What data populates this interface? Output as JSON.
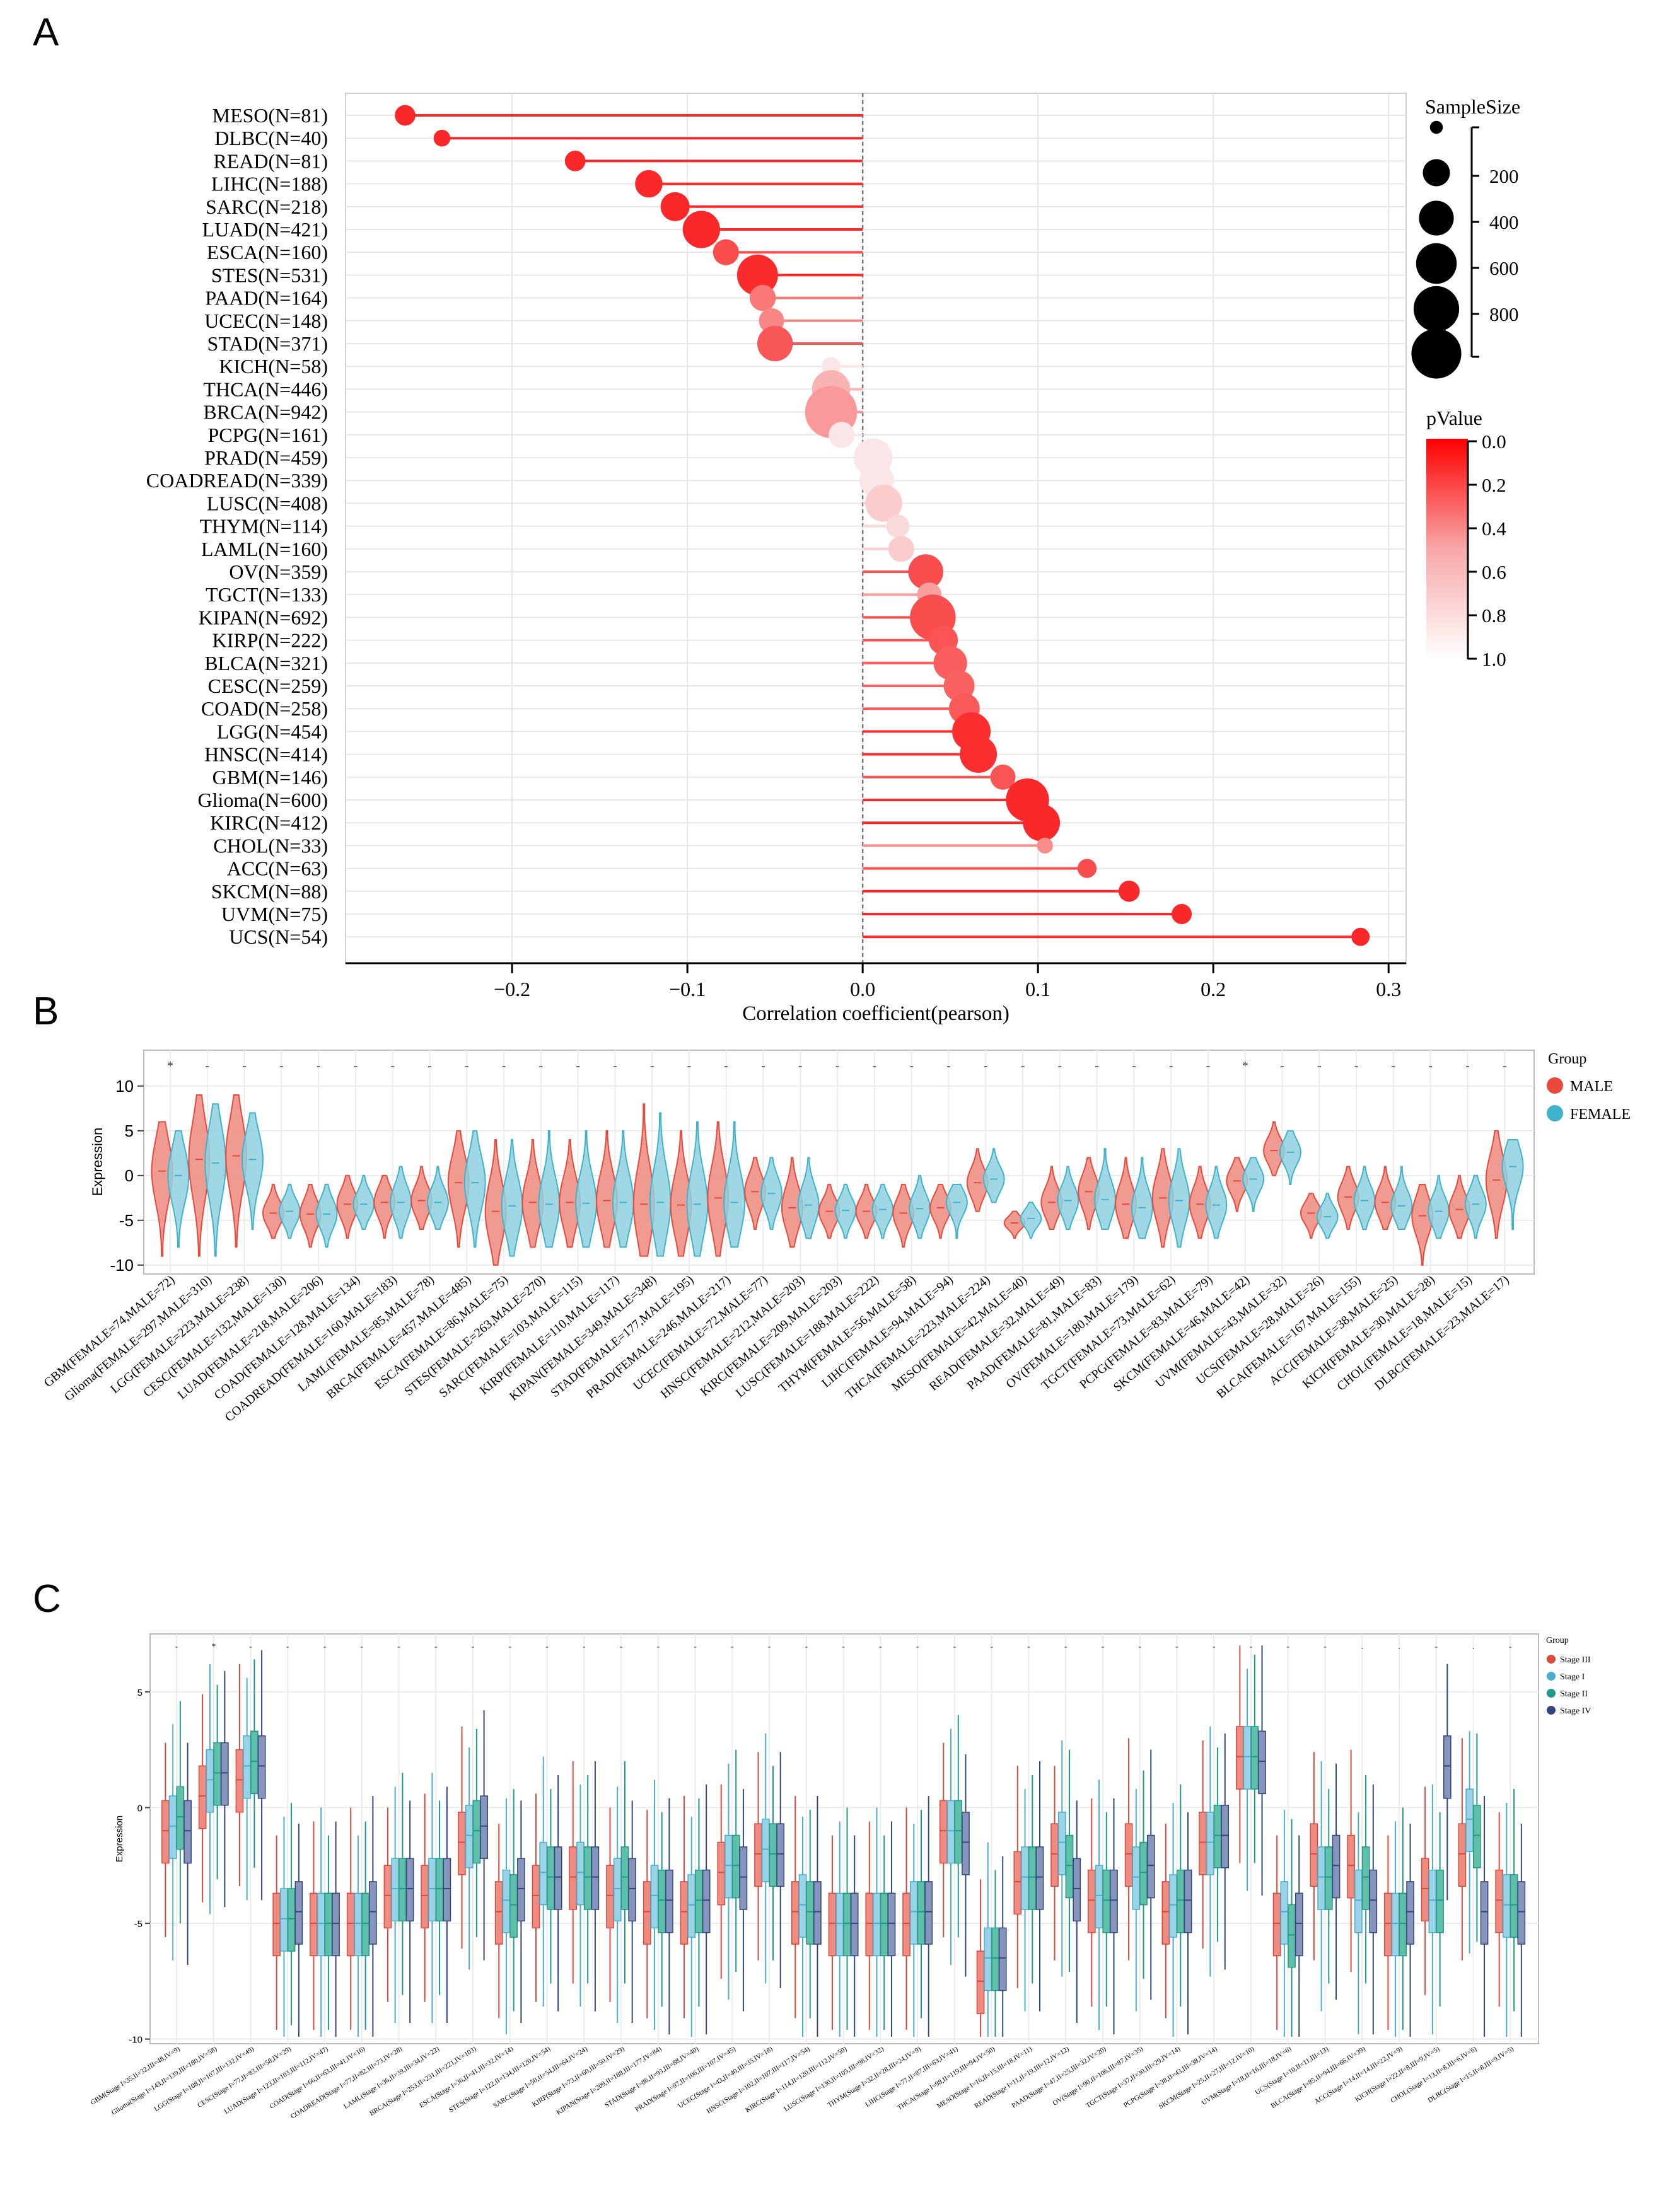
{
  "panels": {
    "a": "A",
    "b": "B",
    "c": "C"
  },
  "chart_data": [
    {
      "type": "scatter",
      "subtype": "lollipop",
      "panel": "A",
      "xlabel": "Correlation coefficient(pearson)",
      "xlim": [
        -0.295,
        0.31
      ],
      "xticks": [
        -0.2,
        -0.1,
        0.0,
        0.1,
        0.2,
        0.3
      ],
      "xtick_labels": [
        "−0.2",
        "−0.1",
        "0.0",
        "0.1",
        "0.2",
        "0.3"
      ],
      "categories": [
        "MESO(N=81)",
        "DLBC(N=40)",
        "READ(N=81)",
        "LIHC(N=188)",
        "SARC(N=218)",
        "LUAD(N=421)",
        "ESCA(N=160)",
        "STES(N=531)",
        "PAAD(N=164)",
        "UCEC(N=148)",
        "STAD(N=371)",
        "KICH(N=58)",
        "THCA(N=446)",
        "BRCA(N=942)",
        "PCPG(N=161)",
        "PRAD(N=459)",
        "COADREAD(N=339)",
        "LUSC(N=408)",
        "THYM(N=114)",
        "LAML(N=160)",
        "OV(N=359)",
        "TGCT(N=133)",
        "KIPAN(N=692)",
        "KIRP(N=222)",
        "BLCA(N=321)",
        "CESC(N=259)",
        "COAD(N=258)",
        "LGG(N=454)",
        "HNSC(N=414)",
        "GBM(N=146)",
        "Glioma(N=600)",
        "KIRC(N=412)",
        "CHOL(N=33)",
        "ACC(N=63)",
        "SKCM(N=88)",
        "UVM(N=75)",
        "UCS(N=54)"
      ],
      "values": [
        -0.261,
        -0.24,
        -0.164,
        -0.122,
        -0.107,
        -0.092,
        -0.078,
        -0.06,
        -0.057,
        -0.052,
        -0.05,
        -0.018,
        -0.018,
        -0.018,
        -0.012,
        0.006,
        0.008,
        0.012,
        0.02,
        0.022,
        0.036,
        0.038,
        0.04,
        0.046,
        0.05,
        0.055,
        0.058,
        0.062,
        0.066,
        0.08,
        0.094,
        0.102,
        0.104,
        0.128,
        0.152,
        0.182,
        0.284
      ],
      "sample_size": [
        81,
        40,
        81,
        188,
        218,
        421,
        160,
        531,
        164,
        148,
        371,
        58,
        446,
        942,
        161,
        459,
        339,
        408,
        114,
        160,
        359,
        133,
        692,
        222,
        321,
        259,
        258,
        454,
        414,
        146,
        600,
        412,
        33,
        63,
        88,
        75,
        54
      ],
      "pvalue": [
        0.02,
        0.15,
        0.14,
        0.09,
        0.1,
        0.06,
        0.3,
        0.17,
        0.47,
        0.53,
        0.34,
        0.9,
        0.7,
        0.6,
        0.9,
        0.9,
        0.9,
        0.8,
        0.85,
        0.8,
        0.3,
        0.62,
        0.3,
        0.33,
        0.37,
        0.38,
        0.35,
        0.18,
        0.18,
        0.33,
        0.02,
        0.04,
        0.55,
        0.3,
        0.16,
        0.12,
        0.04
      ],
      "legend_size": {
        "title": "SampleSize",
        "values": [
          200,
          400,
          600,
          800
        ],
        "labels": [
          "200",
          "400",
          "600",
          "800"
        ]
      },
      "legend_color": {
        "title": "pValue",
        "values": [
          0.0,
          0.2,
          0.4,
          0.6,
          0.8,
          1.0
        ],
        "labels": [
          "0.0",
          "0.2",
          "0.4",
          "0.6",
          "0.8",
          "1.0"
        ],
        "low_color": "#ff0000",
        "high_color": "#ffffff"
      }
    },
    {
      "type": "violin",
      "panel": "B",
      "ylabel": "Expression",
      "ylim": [
        -11,
        14
      ],
      "yticks": [
        10,
        5,
        0,
        -5,
        -10
      ],
      "ytick_labels": [
        "10",
        "5",
        "0",
        "-5",
        "-10"
      ],
      "legend_title": "Group",
      "series": [
        {
          "name": "MALE",
          "color": "#e8493a",
          "fill": "#ec8a7f"
        },
        {
          "name": "FEMALE",
          "color": "#3fb3cc",
          "fill": "#8fd0df"
        }
      ],
      "categories": [
        "GBM(FEMALE=74,MALE=72)",
        "Glioma(FEMALE=297,MALE=310)",
        "LGG(FEMALE=223,MALE=238)",
        "CESC(FEMALE=132,MALE=130)",
        "LUAD(FEMALE=218,MALE=206)",
        "COAD(FEMALE=128,MALE=134)",
        "COADREAD(FEMALE=160,MALE=183)",
        "LAML(FEMALE=85,MALE=78)",
        "BRCA(FEMALE=457,MALE=485)",
        "ESCA(FEMALE=86,MALE=75)",
        "STES(FEMALE=263,MALE=270)",
        "SARC(FEMALE=103,MALE=115)",
        "KIRP(FEMALE=110,MALE=117)",
        "KIPAN(FEMALE=349,MALE=348)",
        "STAD(FEMALE=177,MALE=195)",
        "PRAD(FEMALE=246,MALE=217)",
        "UCEC(FEMALE=72,MALE=77)",
        "HNSC(FEMALE=212,MALE=203)",
        "KIRC(FEMALE=209,MALE=203)",
        "LUSC(FEMALE=188,MALE=222)",
        "THYM(FEMALE=56,MALE=58)",
        "LIHC(FEMALE=94,MALE=94)",
        "THCA(FEMALE=223,MALE=224)",
        "MESO(FEMALE=42,MALE=40)",
        "READ(FEMALE=32,MALE=49)",
        "PAAD(FEMALE=81,MALE=83)",
        "OV(FEMALE=180,MALE=179)",
        "TGCT(FEMALE=73,MALE=62)",
        "PCPG(FEMALE=83,MALE=79)",
        "SKCM(FEMALE=46,MALE=42)",
        "UVM(FEMALE=43,MALE=32)",
        "UCS(FEMALE=28,MALE=26)",
        "BLCA(FEMALE=167,MALE=155)",
        "ACC(FEMALE=38,MALE=25)",
        "KICH(FEMALE=30,MALE=28)",
        "CHOL(FEMALE=18,MALE=15)",
        "DLBC(FEMALE=23,MALE=17)"
      ],
      "median_male": [
        0.5,
        1.8,
        2.2,
        -4.2,
        -4.3,
        -3.2,
        -3.0,
        -2.8,
        -0.8,
        -4.0,
        -3.0,
        -3.0,
        -2.8,
        -3.2,
        -3.3,
        -2.5,
        -1.8,
        -3.6,
        -4.0,
        -4.0,
        -4.2,
        -3.6,
        -0.8,
        -5.3,
        -3.0,
        -1.8,
        -3.2,
        -2.5,
        -3.2,
        -0.6,
        2.8,
        -4.2,
        -2.4,
        -3.0,
        -4.5,
        -3.8,
        -0.5
      ],
      "median_female": [
        0.0,
        1.4,
        1.8,
        -4.0,
        -4.3,
        -3.2,
        -3.0,
        -3.0,
        -0.8,
        -3.4,
        -3.2,
        -3.1,
        -3.0,
        -3.0,
        -3.2,
        -3.0,
        -2.0,
        -3.3,
        -3.9,
        -3.8,
        -3.7,
        -3.0,
        -0.4,
        -4.8,
        -2.8,
        -2.7,
        -3.6,
        -2.8,
        -3.3,
        -0.4,
        2.6,
        -4.6,
        -2.8,
        -3.4,
        -4.0,
        -3.2,
        1.0
      ],
      "extent_male": [
        [
          -9,
          6
        ],
        [
          -9,
          9
        ],
        [
          -8,
          9
        ],
        [
          -7,
          -1
        ],
        [
          -8,
          -1
        ],
        [
          -7,
          0
        ],
        [
          -7,
          0
        ],
        [
          -6,
          1
        ],
        [
          -8,
          5
        ],
        [
          -10,
          4
        ],
        [
          -8,
          4
        ],
        [
          -8,
          4
        ],
        [
          -8,
          5
        ],
        [
          -9,
          8
        ],
        [
          -9,
          5
        ],
        [
          -9,
          6
        ],
        [
          -6,
          2
        ],
        [
          -8,
          2
        ],
        [
          -7,
          -1
        ],
        [
          -7,
          -1
        ],
        [
          -8,
          -1
        ],
        [
          -7,
          -1
        ],
        [
          -4,
          3
        ],
        [
          -7,
          -4
        ],
        [
          -6,
          1
        ],
        [
          -6,
          2
        ],
        [
          -7,
          2
        ],
        [
          -8,
          3
        ],
        [
          -7,
          1
        ],
        [
          -4,
          2
        ],
        [
          0,
          6
        ],
        [
          -7,
          -2
        ],
        [
          -6,
          1
        ],
        [
          -6,
          1
        ],
        [
          -10,
          -1
        ],
        [
          -7,
          0
        ],
        [
          -7,
          5
        ]
      ],
      "extent_female": [
        [
          -8,
          5
        ],
        [
          -9,
          8
        ],
        [
          -6,
          7
        ],
        [
          -7,
          -1
        ],
        [
          -8,
          -1
        ],
        [
          -6,
          0
        ],
        [
          -7,
          1
        ],
        [
          -6,
          1
        ],
        [
          -8,
          5
        ],
        [
          -9,
          4
        ],
        [
          -8,
          5
        ],
        [
          -8,
          5
        ],
        [
          -8,
          5
        ],
        [
          -9,
          7
        ],
        [
          -9,
          6
        ],
        [
          -8,
          6
        ],
        [
          -6,
          2
        ],
        [
          -7,
          2
        ],
        [
          -7,
          -1
        ],
        [
          -7,
          -1
        ],
        [
          -7,
          0
        ],
        [
          -7,
          -1
        ],
        [
          -3,
          3
        ],
        [
          -7,
          -3
        ],
        [
          -6,
          1
        ],
        [
          -6,
          3
        ],
        [
          -7,
          2
        ],
        [
          -8,
          3
        ],
        [
          -7,
          1
        ],
        [
          -4,
          2
        ],
        [
          -1,
          5
        ],
        [
          -7,
          -2
        ],
        [
          -6,
          1
        ],
        [
          -6,
          1
        ],
        [
          -7,
          0
        ],
        [
          -7,
          0
        ],
        [
          -6,
          4
        ]
      ],
      "significance": [
        "*",
        "-",
        "-",
        "-",
        "-",
        "-",
        "-",
        "-",
        "-",
        "-",
        "-",
        "-",
        "-",
        "-",
        "-",
        "-",
        "-",
        "-",
        "-",
        "-",
        "-",
        "-",
        "-",
        "-",
        "-",
        "-",
        "-",
        "-",
        "-",
        "*",
        "-",
        "-",
        "-",
        "-",
        "-",
        "-",
        "-"
      ]
    },
    {
      "type": "box",
      "panel": "C",
      "ylabel": "Expression",
      "ylim": [
        -10.2,
        7.5
      ],
      "yticks": [
        5,
        0,
        -5,
        -10
      ],
      "ytick_labels": [
        "5",
        "0",
        "-5",
        "-10"
      ],
      "legend_title": "Group",
      "series": [
        {
          "name": "Stage III",
          "color": "#d94a3d",
          "fill": "#ee8c82"
        },
        {
          "name": "Stage I",
          "color": "#4aaed1",
          "fill": "#9ad2e6"
        },
        {
          "name": "Stage II",
          "color": "#1e9a86",
          "fill": "#5fbfa9"
        },
        {
          "name": "Stage IV",
          "color": "#33477e",
          "fill": "#8795bd"
        }
      ],
      "categories": [
        "GBM(Stage I=35,II=32,III=48,IV=9)",
        "Glioma(Stage I=143,II=139,III=180,IV=58)",
        "LGG(Stage I=108,II=107,III=132,IV=49)",
        "CESC(Stage I=77,II=83,III=58,IV=29)",
        "LUAD(Stage I=123,II=103,III=112,IV=47)",
        "COAD(Stage I=66,II=63,III=41,IV=16)",
        "COADREAD(Stage I=77,II=82,III=73,IV=28)",
        "LAML(Stage I=36,II=39,III=34,IV=22)",
        "BRCA(Stage I=253,II=231,III=221,IV=103)",
        "ESCA(Stage I=36,II=41,III=32,IV=14)",
        "STES(Stage I=122,II=134,III=120,IV=54)",
        "SARC(Stage I=50,II=54,III=64,IV=24)",
        "KIRP(Stage I=73,II=60,III=50,IV=29)",
        "KIPAN(Stage I=209,II=188,III=177,IV=84)",
        "STAD(Stage I=86,II=93,III=88,IV=40)",
        "PRAD(Stage I=97,II=106,III=107,IV=45)",
        "UCEC(Stage I=43,II=40,III=35,IV=18)",
        "HNSC(Stage I=102,II=107,III=117,IV=54)",
        "KIRC(Stage I=114,II=120,III=112,IV=50)",
        "LUSC(Stage I=130,II=105,III=98,IV=32)",
        "THYM(Stage I=32,II=28,III=24,IV=9)",
        "LIHC(Stage I=77,II=87,III=63,IV=41)",
        "THCA(Stage I=98,II=119,III=94,IV=50)",
        "MESO(Stage I=16,II=15,III=18,IV=11)",
        "READ(Stage I=11,II=19,III=12,IV=12)",
        "PAAD(Stage I=47,II=25,III=32,IV=20)",
        "OV(Stage I=90,II=106,III=87,IV=35)",
        "TGCT(Stage I=37,II=30,III=29,IV=14)",
        "PCPG(Stage I=38,II=43,III=38,IV=14)",
        "SKCM(Stage I=25,II=27,III=12,IV=10)",
        "UVM(Stage I=18,II=16,III=18,IV=6)",
        "UCS(Stage I=10,II=11,III=13)",
        "BLCA(Stage I=85,II=94,III=66,IV=39)",
        "ACC(Stage I=14,II=14,III=22,IV=9)",
        "KICH(Stage I=22,II=8,III=9,IV=5)",
        "CHOL(Stage I=13,II=8,III=6,IV=6)",
        "DLBC(Stage I=15,II=8,III=9,IV=5)"
      ],
      "medians_stage3": [
        -1.0,
        0.5,
        1.2,
        -5.0,
        -5.0,
        -5.0,
        -3.8,
        -3.8,
        -1.5,
        -4.5,
        -3.8,
        -3.0,
        -3.8,
        -4.5,
        -4.5,
        -2.8,
        -2.0,
        -4.5,
        -5.0,
        -5.0,
        -5.0,
        -1.0,
        -7.5,
        -3.2,
        -2.0,
        -4.0,
        -2.0,
        -4.5,
        -1.5,
        2.2,
        -5.0,
        -2.0,
        -2.5,
        -5.0,
        -3.5,
        -2.0,
        -4.0
      ],
      "medians_stage1": [
        -0.8,
        1.2,
        1.8,
        -4.8,
        -5.0,
        -5.0,
        -3.5,
        -3.5,
        -1.2,
        -4.0,
        -2.8,
        -2.8,
        -3.5,
        -3.8,
        -4.2,
        -2.5,
        -1.8,
        -4.2,
        -5.0,
        -5.0,
        -4.5,
        -1.0,
        -6.5,
        -3.0,
        -1.5,
        -3.8,
        -3.0,
        -4.2,
        -1.5,
        2.2,
        -4.5,
        -3.0,
        -4.0,
        -5.0,
        -4.0,
        -0.5,
        -4.2
      ],
      "medians_stage2": [
        -0.4,
        1.5,
        2.0,
        -4.8,
        -5.0,
        -5.0,
        -3.5,
        -3.5,
        -1.0,
        -4.2,
        -3.0,
        -3.0,
        -3.0,
        -4.0,
        -4.0,
        -2.5,
        -2.0,
        -4.5,
        -5.0,
        -5.0,
        -4.5,
        -1.0,
        -6.5,
        -3.0,
        -2.5,
        -4.0,
        -2.8,
        -4.0,
        -1.2,
        2.2,
        -5.5,
        -3.0,
        -3.0,
        -5.0,
        -4.0,
        -1.2,
        -4.2
      ],
      "medians_stage4": [
        -1.0,
        1.5,
        1.8,
        -4.5,
        -5.0,
        -4.5,
        -3.5,
        -3.5,
        -0.8,
        -3.5,
        -3.0,
        -3.0,
        -3.5,
        -4.0,
        -4.0,
        -3.0,
        -2.0,
        -4.5,
        -5.0,
        -5.0,
        -4.5,
        -1.5,
        -6.5,
        -3.0,
        -3.5,
        -4.0,
        -2.5,
        -4.0,
        -1.2,
        2.0,
        -5.0,
        -2.5,
        -4.0,
        -4.5,
        1.8,
        -4.5,
        -4.5
      ],
      "significance": [
        "-",
        "*",
        "-",
        "-",
        "-",
        "-",
        "-",
        "-",
        "-",
        "-",
        "-",
        "-",
        "-",
        "-",
        "-",
        "-",
        "-",
        "-",
        "-",
        "-",
        "-",
        "-",
        "-",
        "-",
        "-",
        "-",
        "-",
        "-",
        "-",
        "-",
        "-",
        "-",
        ".",
        ".",
        "-",
        ".",
        "-"
      ]
    }
  ]
}
